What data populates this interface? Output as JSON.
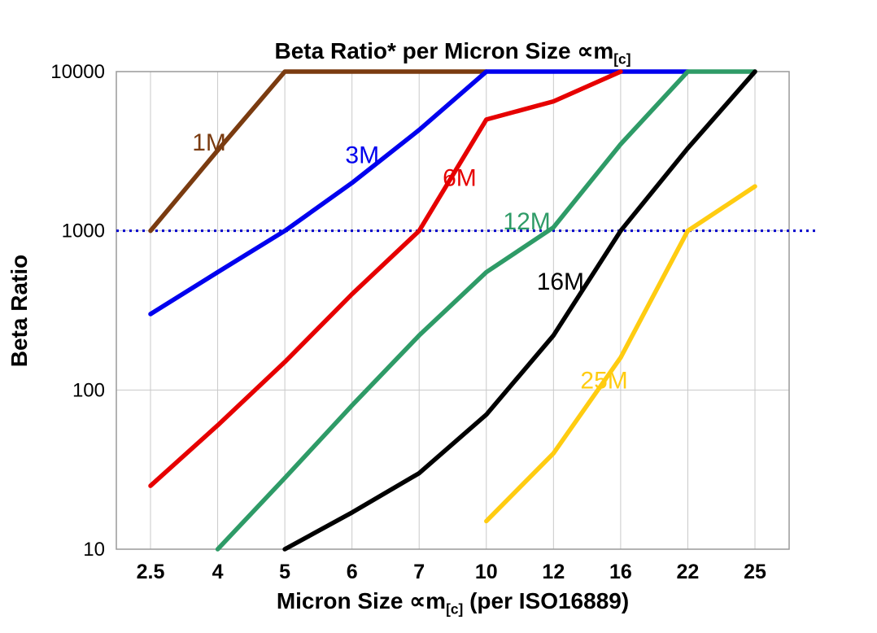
{
  "title": {
    "main": "Beta Ratio* per Micron Size ∝m",
    "sub": "[c]"
  },
  "y_axis": {
    "label": "Beta Ratio"
  },
  "x_axis": {
    "label_pre": "Micron Size ∝m",
    "label_sub": "[c]",
    "label_post": " (per ISO16889)"
  },
  "chart_data": {
    "type": "line",
    "title": "Beta Ratio* per Micron Size ∝m[c]",
    "xlabel": "Micron Size ∝m[c] (per ISO16889)",
    "ylabel": "Beta Ratio",
    "y_scale": "log",
    "ylim": [
      10,
      10000
    ],
    "grid": true,
    "legend_position": "inline-labels",
    "categories": [
      "2.5",
      "4",
      "5",
      "6",
      "7",
      "10",
      "12",
      "16",
      "22",
      "25"
    ],
    "y_ticks": [
      10000,
      1000,
      100,
      10
    ],
    "reference_line": {
      "value": 1000,
      "style": "dotted",
      "color": "#0000CC"
    },
    "series": [
      {
        "name": "1M",
        "color": "#7A3B10",
        "values": [
          1000,
          3200,
          10000,
          10000,
          10000,
          10000,
          null,
          null,
          null,
          null
        ]
      },
      {
        "name": "3M",
        "color": "#0000EE",
        "values": [
          300,
          550,
          1000,
          2000,
          4300,
          10000,
          10000,
          10000,
          10000,
          null
        ]
      },
      {
        "name": "6M",
        "color": "#E60000",
        "values": [
          25,
          60,
          150,
          400,
          1000,
          5000,
          6500,
          10000,
          null,
          null
        ]
      },
      {
        "name": "12M",
        "color": "#2E9B67",
        "values": [
          null,
          10,
          28,
          80,
          220,
          550,
          1050,
          3500,
          10000,
          10000
        ]
      },
      {
        "name": "16M",
        "color": "#000000",
        "values": [
          null,
          null,
          10,
          17,
          30,
          70,
          220,
          1000,
          3300,
          10000
        ]
      },
      {
        "name": "25M",
        "color": "#FFCC11",
        "values": [
          null,
          null,
          null,
          null,
          null,
          15,
          40,
          160,
          1000,
          1900
        ]
      }
    ],
    "annotations": [
      {
        "text": "1M",
        "color": "#7A3B10",
        "cat": 0.62,
        "value": 3600
      },
      {
        "text": "3M",
        "color": "#0000EE",
        "cat": 2.9,
        "value": 3000
      },
      {
        "text": "6M",
        "color": "#E60000",
        "cat": 4.35,
        "value": 2150
      },
      {
        "text": "12M",
        "color": "#2E9B67",
        "cat": 5.25,
        "value": 1150
      },
      {
        "text": "16M",
        "color": "#000000",
        "cat": 5.75,
        "value": 480
      },
      {
        "text": "25M",
        "color": "#FFCC11",
        "cat": 6.4,
        "value": 115
      }
    ]
  }
}
